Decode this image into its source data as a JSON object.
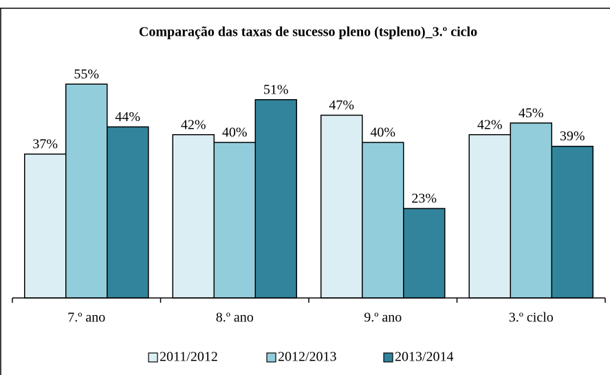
{
  "chart_data": {
    "type": "bar",
    "title": "Comparação das taxas de sucesso pleno (tspleno)_3.º ciclo",
    "categories": [
      "7.º ano",
      "8.º ano",
      "9.º ano",
      "3.º ciclo"
    ],
    "series": [
      {
        "name": "2011/2012",
        "color": "#dbeef4",
        "values": [
          37,
          42,
          47,
          42
        ],
        "value_labels": [
          "37%",
          "42%",
          "47%",
          "42%"
        ]
      },
      {
        "name": "2012/2013",
        "color": "#92cddc",
        "values": [
          55,
          40,
          40,
          45
        ],
        "value_labels": [
          "55%",
          "40%",
          "40%",
          "45%"
        ]
      },
      {
        "name": "2013/2014",
        "color": "#31849b",
        "values": [
          44,
          51,
          23,
          39
        ],
        "value_labels": [
          "44%",
          "51%",
          "23%",
          "39%"
        ]
      }
    ],
    "ylim": [
      0,
      60
    ],
    "legend": "bottom"
  }
}
